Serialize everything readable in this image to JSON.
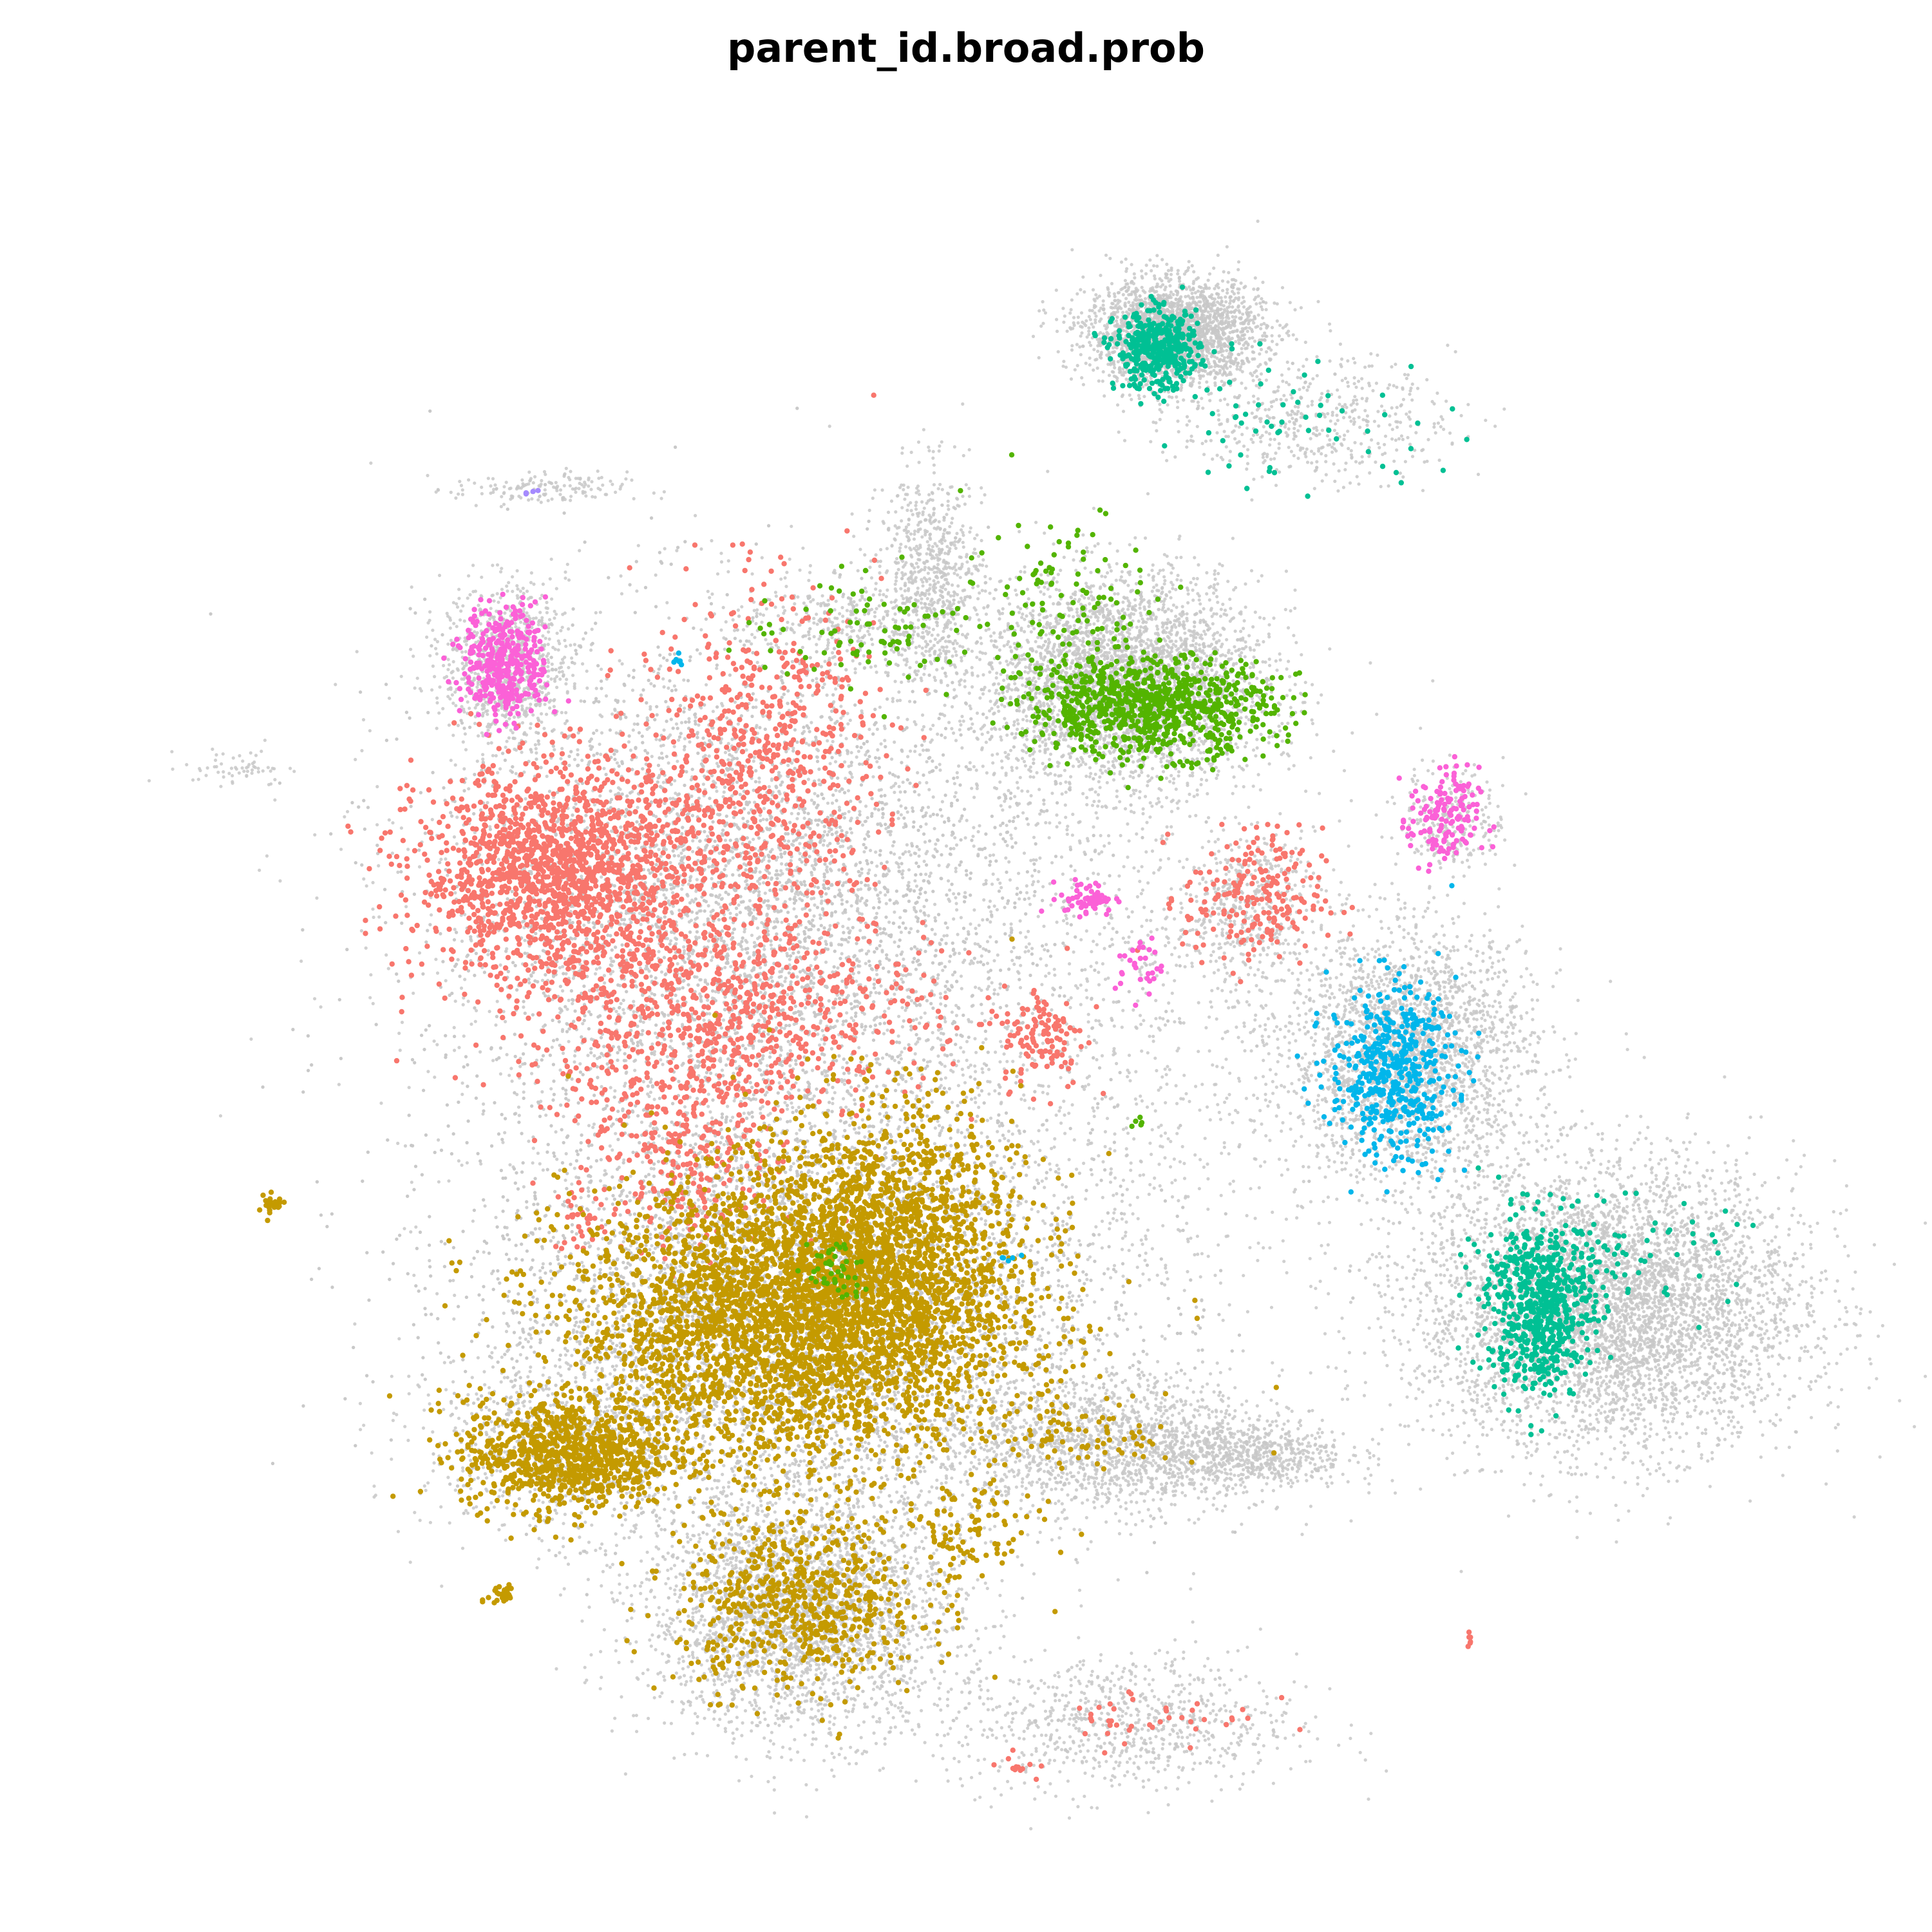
{
  "chart_data": {
    "type": "scatter",
    "title": "parent_id.broad.prob",
    "xlabel": "",
    "ylabel": "",
    "grid": false,
    "legend": "none",
    "xlim": [
      0,
      100
    ],
    "ylim": [
      0,
      100
    ],
    "background_color": "#C8C8C8",
    "series": [
      {
        "color": "#F8766D",
        "clusters": [
          {
            "cx": 26.5,
            "cy": 58.0,
            "sx": 4.0,
            "sy": 3.0,
            "n": 1600
          },
          {
            "cx": 36.0,
            "cy": 50.0,
            "sx": 6.0,
            "sy": 3.0,
            "n": 800
          },
          {
            "cx": 38.0,
            "cy": 64.0,
            "sx": 3.5,
            "sy": 5.0,
            "n": 700
          },
          {
            "cx": 34.0,
            "cy": 42.0,
            "sx": 3.0,
            "sy": 3.0,
            "n": 300
          },
          {
            "cx": 66.5,
            "cy": 56.5,
            "sx": 2.0,
            "sy": 2.0,
            "n": 220
          },
          {
            "cx": 54.5,
            "cy": 48.5,
            "sx": 1.2,
            "sy": 1.5,
            "n": 120
          },
          {
            "cx": 27.8,
            "cy": 38.0,
            "sx": 0.8,
            "sy": 1.0,
            "n": 30
          },
          {
            "cx": 61.0,
            "cy": 9.5,
            "sx": 3.0,
            "sy": 1.0,
            "n": 40
          },
          {
            "cx": 53.0,
            "cy": 6.5,
            "sx": 0.6,
            "sy": 0.4,
            "n": 12
          },
          {
            "cx": 79.0,
            "cy": 14.0,
            "sx": 0.2,
            "sy": 0.2,
            "n": 6
          }
        ]
      },
      {
        "color": "#C49A00",
        "clusters": [
          {
            "cx": 40.0,
            "cy": 32.0,
            "sx": 6.5,
            "sy": 4.0,
            "n": 3500
          },
          {
            "cx": 45.0,
            "cy": 37.0,
            "sx": 4.0,
            "sy": 4.0,
            "n": 1400
          },
          {
            "cx": 27.0,
            "cy": 24.5,
            "sx": 3.0,
            "sy": 1.6,
            "n": 900
          },
          {
            "cx": 40.5,
            "cy": 16.0,
            "sx": 3.5,
            "sy": 2.5,
            "n": 700
          },
          {
            "cx": 50.0,
            "cy": 20.0,
            "sx": 2.0,
            "sy": 1.5,
            "n": 100
          },
          {
            "cx": 57.0,
            "cy": 25.5,
            "sx": 2.5,
            "sy": 1.0,
            "n": 80
          },
          {
            "cx": 23.3,
            "cy": 16.5,
            "sx": 0.4,
            "sy": 0.4,
            "n": 30
          },
          {
            "cx": 10.0,
            "cy": 38.8,
            "sx": 0.4,
            "sy": 0.3,
            "n": 25
          }
        ]
      },
      {
        "color": "#53B400",
        "clusters": [
          {
            "cx": 60.5,
            "cy": 67.5,
            "sx": 3.5,
            "sy": 1.4,
            "n": 900
          },
          {
            "cx": 56.0,
            "cy": 73.5,
            "sx": 3.0,
            "sy": 3.0,
            "n": 120
          },
          {
            "cx": 45.0,
            "cy": 72.0,
            "sx": 4.0,
            "sy": 1.5,
            "n": 90
          },
          {
            "cx": 42.5,
            "cy": 35.0,
            "sx": 0.8,
            "sy": 1.0,
            "n": 45
          },
          {
            "cx": 60.0,
            "cy": 43.5,
            "sx": 0.3,
            "sy": 0.3,
            "n": 6
          }
        ]
      },
      {
        "color": "#00C094",
        "clusters": [
          {
            "cx": 61.0,
            "cy": 88.0,
            "sx": 1.2,
            "sy": 1.1,
            "n": 420
          },
          {
            "cx": 69.0,
            "cy": 84.0,
            "sx": 4.5,
            "sy": 2.0,
            "n": 60
          },
          {
            "cx": 83.0,
            "cy": 33.0,
            "sx": 1.5,
            "sy": 2.5,
            "n": 650
          },
          {
            "cx": 87.0,
            "cy": 36.0,
            "sx": 3.5,
            "sy": 1.5,
            "n": 90
          }
        ]
      },
      {
        "color": "#00B6EB",
        "clusters": [
          {
            "cx": 74.5,
            "cy": 46.5,
            "sx": 1.8,
            "sy": 2.5,
            "n": 500
          },
          {
            "cx": 33.5,
            "cy": 70.2,
            "sx": 0.2,
            "sy": 0.2,
            "n": 6
          },
          {
            "cx": 52.5,
            "cy": 36.0,
            "sx": 0.4,
            "sy": 0.4,
            "n": 5
          }
        ]
      },
      {
        "color": "#FB61D7",
        "clusters": [
          {
            "cx": 23.5,
            "cy": 70.0,
            "sx": 1.2,
            "sy": 1.6,
            "n": 380
          },
          {
            "cx": 77.5,
            "cy": 61.0,
            "sx": 1.0,
            "sy": 1.5,
            "n": 150
          },
          {
            "cx": 57.0,
            "cy": 56.5,
            "sx": 0.8,
            "sy": 0.5,
            "n": 60
          },
          {
            "cx": 60.0,
            "cy": 52.5,
            "sx": 0.7,
            "sy": 0.9,
            "n": 30
          }
        ]
      },
      {
        "color": "#A58AFF",
        "clusters": [
          {
            "cx": 24.8,
            "cy": 80.0,
            "sx": 0.3,
            "sy": 0.2,
            "n": 4
          }
        ]
      }
    ],
    "background_clusters": [
      {
        "cx": 62.0,
        "cy": 89.0,
        "sx": 2.5,
        "sy": 1.5,
        "n": 2500
      },
      {
        "cx": 70.0,
        "cy": 84.0,
        "sx": 4.0,
        "sy": 1.8,
        "n": 500
      },
      {
        "cx": 59.0,
        "cy": 69.0,
        "sx": 4.0,
        "sy": 3.0,
        "n": 3500
      },
      {
        "cx": 48.0,
        "cy": 75.0,
        "sx": 1.5,
        "sy": 3.0,
        "n": 700
      },
      {
        "cx": 43.0,
        "cy": 72.5,
        "sx": 3.0,
        "sy": 1.2,
        "n": 300
      },
      {
        "cx": 23.5,
        "cy": 70.0,
        "sx": 1.8,
        "sy": 2.2,
        "n": 900
      },
      {
        "cx": 25.5,
        "cy": 80.0,
        "sx": 2.5,
        "sy": 0.5,
        "n": 150
      },
      {
        "cx": 8.0,
        "cy": 64.0,
        "sx": 1.5,
        "sy": 0.5,
        "n": 60
      },
      {
        "cx": 37.0,
        "cy": 56.0,
        "sx": 9.0,
        "sy": 8.0,
        "n": 8000
      },
      {
        "cx": 40.0,
        "cy": 33.0,
        "sx": 9.0,
        "sy": 6.0,
        "n": 9000
      },
      {
        "cx": 40.5,
        "cy": 15.5,
        "sx": 4.5,
        "sy": 3.5,
        "n": 3000
      },
      {
        "cx": 58.0,
        "cy": 25.0,
        "sx": 5.0,
        "sy": 2.0,
        "n": 1500
      },
      {
        "cx": 66.0,
        "cy": 24.5,
        "sx": 3.0,
        "sy": 1.0,
        "n": 600
      },
      {
        "cx": 27.0,
        "cy": 25.0,
        "sx": 4.0,
        "sy": 2.5,
        "n": 800
      },
      {
        "cx": 75.5,
        "cy": 47.5,
        "sx": 3.5,
        "sy": 3.5,
        "n": 2500
      },
      {
        "cx": 87.0,
        "cy": 33.0,
        "sx": 5.5,
        "sy": 4.0,
        "n": 5000
      },
      {
        "cx": 66.0,
        "cy": 56.0,
        "sx": 2.0,
        "sy": 2.0,
        "n": 400
      },
      {
        "cx": 78.0,
        "cy": 61.0,
        "sx": 1.5,
        "sy": 1.5,
        "n": 250
      },
      {
        "cx": 59.0,
        "cy": 9.0,
        "sx": 5.0,
        "sy": 2.0,
        "n": 800
      },
      {
        "cx": 58.0,
        "cy": 48.0,
        "sx": 8.0,
        "sy": 10.0,
        "n": 1200
      }
    ]
  }
}
